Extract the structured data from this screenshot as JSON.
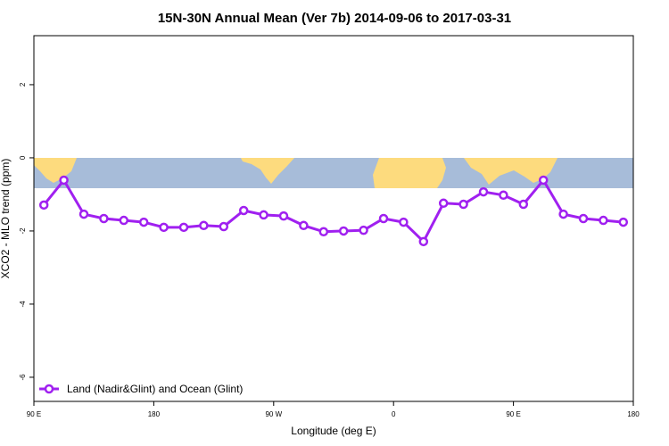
{
  "chart_data": {
    "type": "line",
    "title": "15N-30N Annual Mean (Ver 7b)   2014-09-06 to 2017-03-31",
    "x_label": "Longitude (deg E)",
    "y_label": "XCO2 - MLO trend (ppm)",
    "x": [
      97.5,
      112.5,
      127.5,
      142.5,
      157.5,
      172.5,
      187.5,
      202.5,
      217.5,
      232.5,
      247.5,
      262.5,
      277.5,
      292.5,
      307.5,
      322.5,
      337.5,
      352.5,
      367.5,
      382.5,
      397.5,
      412.5,
      427.5,
      442.5,
      457.5,
      472.5,
      487.5,
      502.5,
      517.5,
      532.5
    ],
    "series": [
      {
        "name": "Land (Nadir&Glint) and Ocean (Glint)",
        "color": "#a020f0",
        "values": [
          -1.29,
          -0.61,
          -1.54,
          -1.66,
          -1.71,
          -1.76,
          -1.9,
          -1.9,
          -1.85,
          -1.88,
          -1.44,
          -1.56,
          -1.59,
          -1.85,
          -2.02,
          -2.0,
          -1.98,
          -1.66,
          -1.76,
          -2.29,
          -1.24,
          -1.27,
          -0.93,
          -1.02,
          -1.27,
          -0.61,
          -1.54,
          -1.66,
          -1.71,
          -1.76
        ]
      }
    ],
    "xlim": [
      90,
      540
    ],
    "xticks": [
      {
        "value": 90,
        "label": "90 E"
      },
      180,
      {
        "value": 270,
        "label": "90 W"
      },
      {
        "value": 360,
        "label": "0"
      },
      {
        "value": 450,
        "label": "90 E"
      },
      {
        "value": 540,
        "label": "180"
      }
    ],
    "ylim": [
      -6.66,
      3.34
    ],
    "yticks": [
      -6,
      -4,
      -2,
      0,
      2
    ],
    "legend": "bottom-left"
  }
}
